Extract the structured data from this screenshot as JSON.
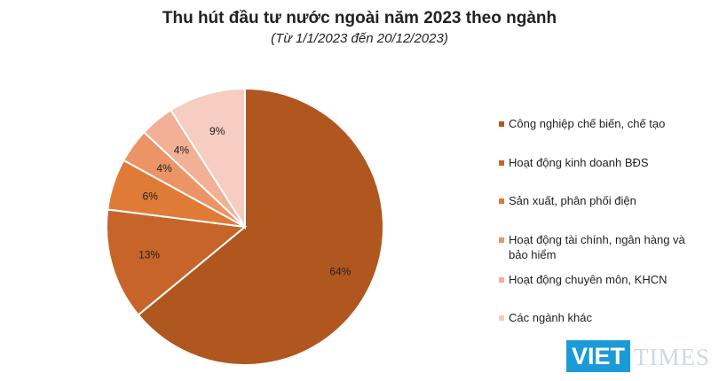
{
  "chart_data": {
    "type": "pie",
    "title": "Thu hút đầu tư nước ngoài năm 2023 theo ngành",
    "subtitle": "(Từ 1/1/2023 đến 20/12/2023)",
    "slices": [
      {
        "label": "Công nghiệp chế biến, chế tạo",
        "value": 64,
        "display": "64%",
        "color": "#b0561f"
      },
      {
        "label": "Hoạt động kinh doanh BĐS",
        "value": 13,
        "display": "13%",
        "color": "#c7642a"
      },
      {
        "label": "Sản xuất, phân phối điện",
        "value": 6,
        "display": "6%",
        "color": "#e07b37"
      },
      {
        "label": "Hoạt động tài chính, ngân hàng và bảo hiểm",
        "value": 4,
        "display": "4%",
        "color": "#ec9466"
      },
      {
        "label": "Hoạt động chuyên môn, KHCN",
        "value": 4,
        "display": "4%",
        "color": "#f2b097"
      },
      {
        "label": "Các ngành khác",
        "value": 9,
        "display": "9%",
        "color": "#f6cdc0"
      }
    ],
    "legend_position": "right"
  },
  "watermark": {
    "brand_left": "VIET",
    "brand_right": "TIMES",
    "brand_color": "#1c9ad6"
  }
}
